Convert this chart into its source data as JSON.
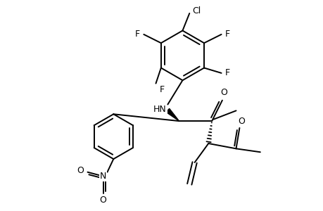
{
  "background": "#ffffff",
  "line_color": "#000000",
  "line_width": 1.4,
  "font_size": 9,
  "figsize": [
    4.6,
    3.0
  ],
  "dpi": 100,
  "xlim": [
    0,
    9.2
  ],
  "ylim": [
    0,
    6.0
  ]
}
